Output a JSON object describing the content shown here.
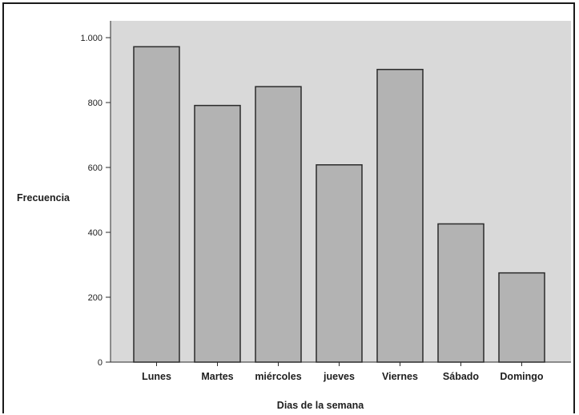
{
  "chart_data": {
    "type": "bar",
    "xlabel": "Dias de la semana",
    "ylabel": "Frecuencia",
    "categories": [
      "Lunes",
      "Martes",
      "miércoles",
      "jueves",
      "Viernes",
      "Sábado",
      "Domingo"
    ],
    "values": [
      972,
      791,
      849,
      608,
      902,
      426,
      275
    ],
    "ylim": [
      0,
      1000
    ],
    "yticks": [
      0,
      200,
      400,
      600,
      800,
      1000
    ],
    "ytick_labels": [
      "0",
      "200",
      "400",
      "600",
      "800",
      "1.000"
    ],
    "grid": false,
    "legend": "none",
    "colors": {
      "plot_background": "#d9d9d9",
      "bar_fill": "#b3b3b3",
      "bar_edge": "#2b2b2b",
      "axis": "#2b2b2b"
    }
  }
}
